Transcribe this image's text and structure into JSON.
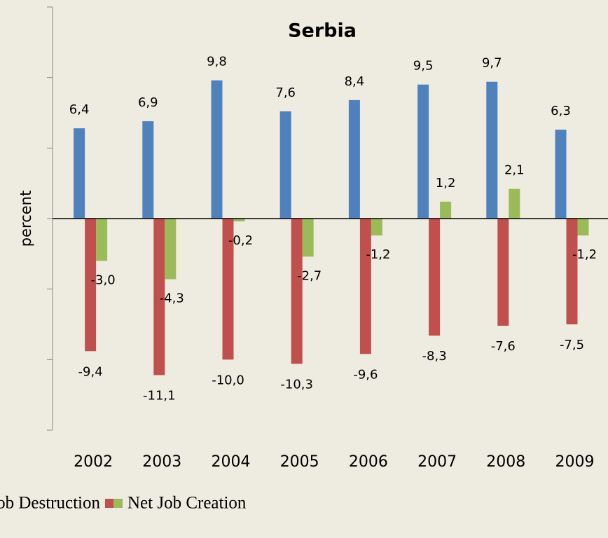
{
  "chart_data": {
    "type": "bar",
    "title": "Serbia",
    "y_label": "percent",
    "categories": [
      "2002",
      "2003",
      "2004",
      "2005",
      "2006",
      "2007",
      "2008",
      "2009"
    ],
    "series": [
      {
        "color": "#4f81bd",
        "values": [
          6.4,
          6.9,
          9.8,
          7.6,
          8.4,
          9.5,
          9.7,
          6.3
        ],
        "value_labels": [
          "6,4",
          "6,9",
          "9,8",
          "7,6",
          "8,4",
          "9,5",
          "9,7",
          "6,3"
        ]
      },
      {
        "name": "Job Destruction",
        "color": "#c0504d",
        "values": [
          -9.4,
          -11.1,
          -10.0,
          -10.3,
          -9.6,
          -8.3,
          -7.6,
          -7.5
        ],
        "value_labels": [
          "-9,4",
          "-11,1",
          "-10,0",
          "-10,3",
          "-9,6",
          "-8,3",
          "-7,6",
          "-7,5"
        ]
      },
      {
        "name": "Net Job Creation",
        "color": "#9bbb59",
        "values": [
          -3.0,
          -4.3,
          -0.2,
          -2.7,
          -1.2,
          1.2,
          2.1,
          -1.2
        ],
        "value_labels": [
          "-3,0",
          "-4,3",
          "-0,2",
          "-2,7",
          "-1,2",
          "1,2",
          "2,1",
          "-1,2"
        ]
      }
    ],
    "ylim": [
      -15,
      15
    ],
    "yticks": [
      -15,
      -10,
      -5,
      0,
      5,
      10,
      15
    ]
  }
}
